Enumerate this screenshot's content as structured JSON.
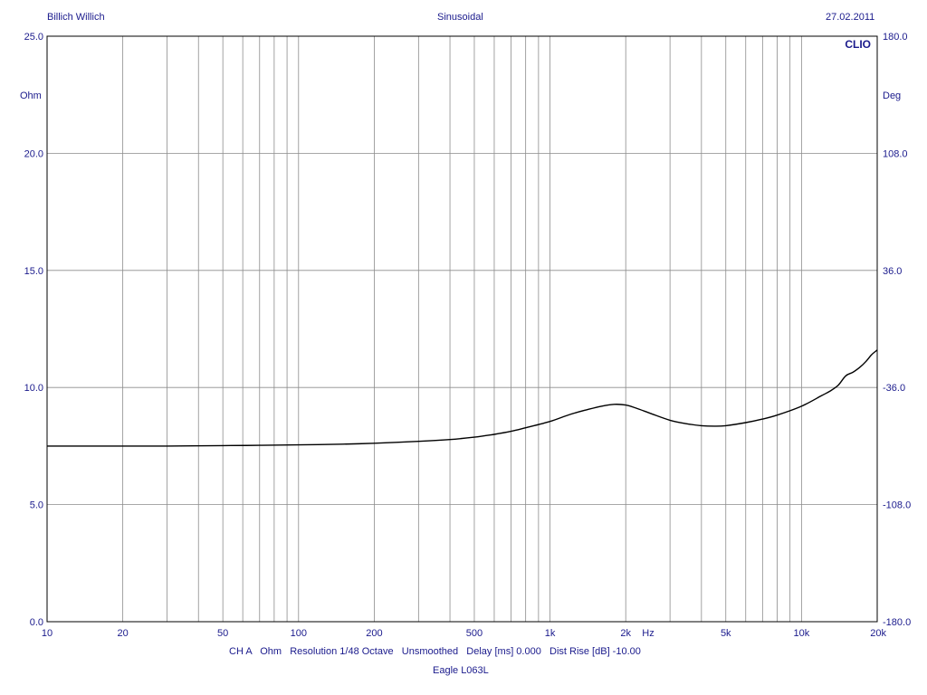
{
  "header": {
    "left": "Billich Willich",
    "center": "Sinusoidal",
    "right": "27.02.2011"
  },
  "brand": "CLIO",
  "colors": {
    "text": "#1a1a8c",
    "grid": "#8c8c8c",
    "frame": "#000000",
    "curve": "#000000"
  },
  "footer": {
    "settings": "CH A   Ohm   Resolution 1/48 Octave   Unsmoothed   Delay [ms] 0.000   Dist Rise [dB] -10.00",
    "device": "Eagle L063L"
  },
  "chart_data": {
    "type": "line",
    "xscale": "log",
    "xlim": [
      10,
      20000
    ],
    "ylim": [
      0,
      25
    ],
    "y2lim": [
      -180,
      180
    ],
    "grid": true,
    "xlabel": "Hz",
    "ylabel": "Ohm",
    "y2label": "Deg",
    "x_tick_labels": [
      {
        "v": 10,
        "t": "10"
      },
      {
        "v": 20,
        "t": "20"
      },
      {
        "v": 50,
        "t": "50"
      },
      {
        "v": 100,
        "t": "100"
      },
      {
        "v": 200,
        "t": "200"
      },
      {
        "v": 500,
        "t": "500"
      },
      {
        "v": 1000,
        "t": "1k"
      },
      {
        "v": 2000,
        "t": "2k"
      },
      {
        "v": 5000,
        "t": "5k"
      },
      {
        "v": 10000,
        "t": "10k"
      },
      {
        "v": 20000,
        "t": "20k"
      }
    ],
    "y_ticks": [
      {
        "v": 0,
        "t": "0.0"
      },
      {
        "v": 5,
        "t": "5.0"
      },
      {
        "v": 10,
        "t": "10.0"
      },
      {
        "v": 15,
        "t": "15.0"
      },
      {
        "v": 20,
        "t": "20.0"
      },
      {
        "v": 25,
        "t": "25.0"
      }
    ],
    "y2_ticks": [
      {
        "v": -180,
        "t": "-180.0"
      },
      {
        "v": -108,
        "t": "-108.0"
      },
      {
        "v": -36,
        "t": "-36.0"
      },
      {
        "v": 36,
        "t": "36.0"
      },
      {
        "v": 108,
        "t": "108.0"
      },
      {
        "v": 180,
        "t": "180.0"
      }
    ],
    "series": [
      {
        "x": [
          10,
          20,
          30,
          50,
          70,
          100,
          150,
          200,
          300,
          400,
          500,
          600,
          700,
          800,
          1000,
          1200,
          1400,
          1600,
          1800,
          2000,
          2200,
          2500,
          3000,
          3500,
          4000,
          4500,
          5000,
          6000,
          7000,
          8000,
          10000,
          12000,
          13000,
          14000,
          15000,
          16000,
          17000,
          18000,
          19000,
          20000
        ],
        "y": [
          7.5,
          7.5,
          7.5,
          7.52,
          7.53,
          7.55,
          7.58,
          7.62,
          7.7,
          7.78,
          7.88,
          8.0,
          8.13,
          8.28,
          8.55,
          8.85,
          9.05,
          9.2,
          9.28,
          9.25,
          9.12,
          8.9,
          8.6,
          8.45,
          8.37,
          8.35,
          8.37,
          8.5,
          8.65,
          8.82,
          9.2,
          9.65,
          9.85,
          10.1,
          10.5,
          10.65,
          10.85,
          11.1,
          11.4,
          11.6
        ]
      }
    ]
  }
}
